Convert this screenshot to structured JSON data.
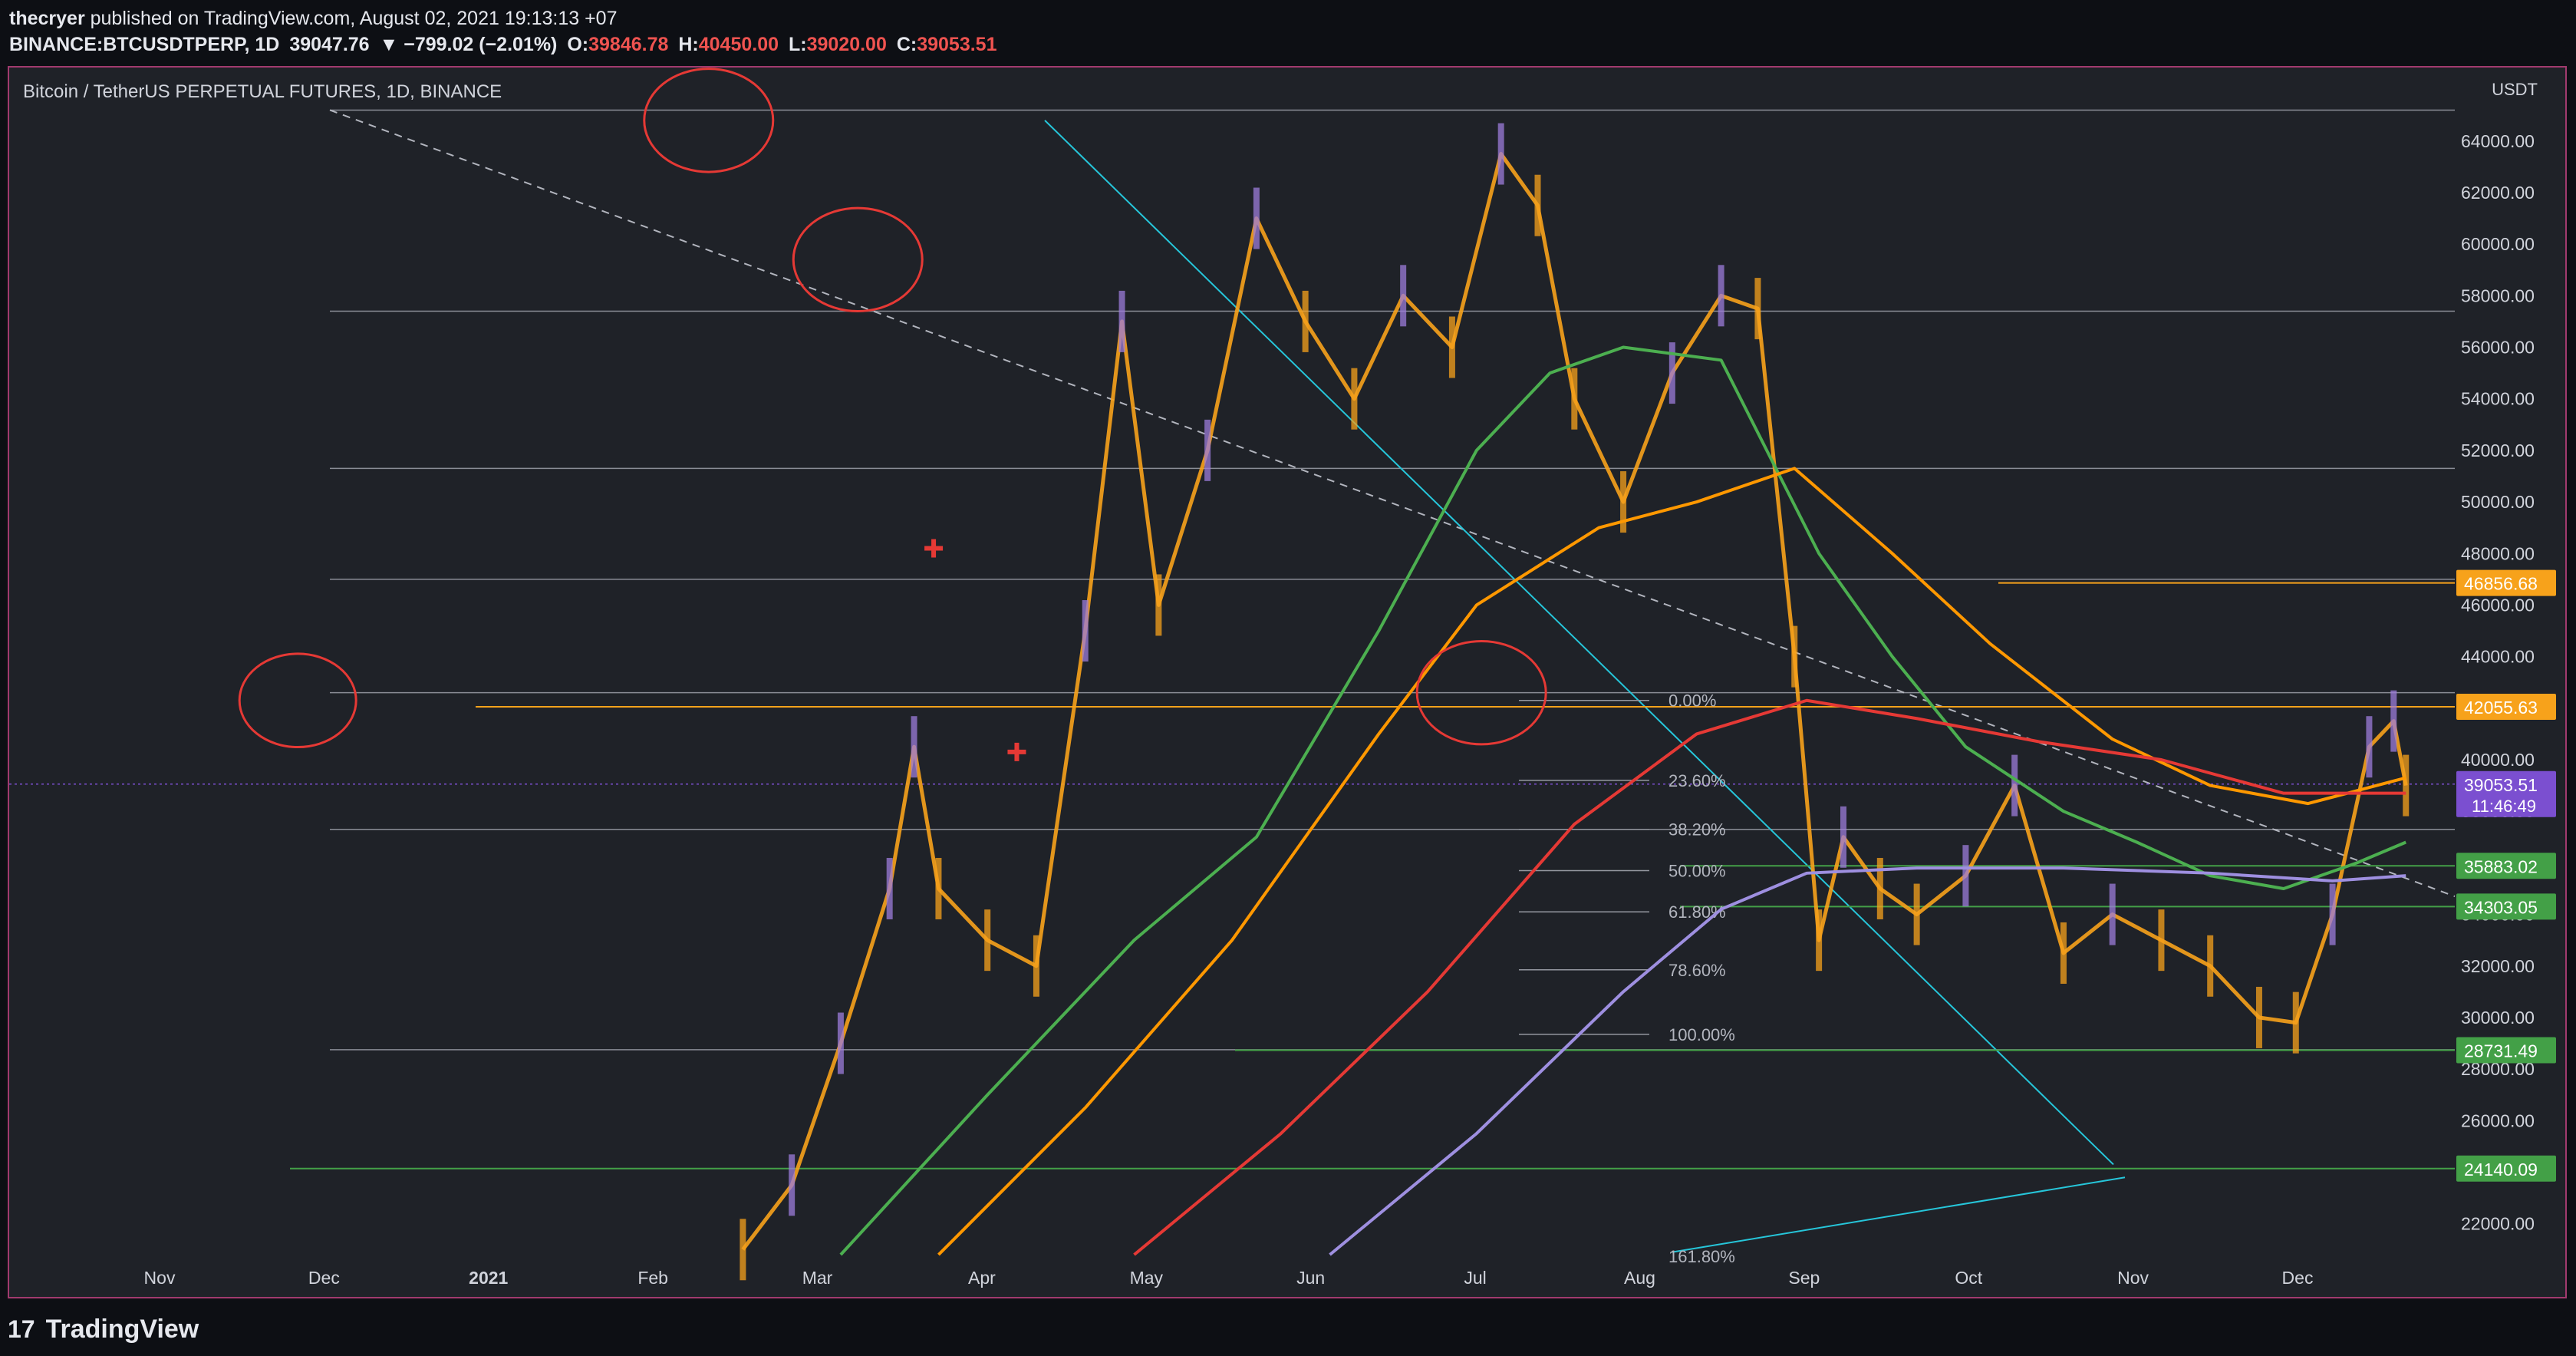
{
  "header": {
    "author": "thecryer",
    "published": "published on TradingView.com, August 02, 2021 19:13:13 +07",
    "symbol": "BINANCE:BTCUSDTPERP, 1D",
    "last": "39047.76",
    "change": "▼ −799.02 (−2.01%)",
    "o_label": "O:",
    "o": "39846.78",
    "h_label": "H:",
    "h": "40450.00",
    "l_label": "L:",
    "l": "39020.00",
    "c_label": "C:",
    "c": "39053.51"
  },
  "chart_title": "Bitcoin / TetherUS PERPETUAL FUTURES, 1D, BINANCE",
  "currency": "USDT",
  "footer": {
    "logo_mark": "17",
    "logo_text": "TradingView"
  },
  "colors": {
    "background": "#1f2228",
    "candle_up": "#9c7cd9",
    "candle_down": "#f7a21b",
    "ma_green": "#4caf50",
    "ma_orange": "#ff9800",
    "ma_red": "#e53935",
    "ma_purple": "#9e8fe0",
    "trendline": "#26c6da",
    "circle": "#e53935"
  },
  "chart_data": {
    "type": "line",
    "ylim": [
      20800,
      65600
    ],
    "x_axis_labels": [
      "Nov",
      "Dec",
      "2021",
      "Feb",
      "Mar",
      "Apr",
      "May",
      "Jun",
      "Jul",
      "Aug",
      "Sep",
      "Oct",
      "Nov",
      "Dec"
    ],
    "y_ticks": [
      22000,
      24000,
      26000,
      28000,
      30000,
      32000,
      34000,
      36000,
      38000,
      40000,
      42000,
      44000,
      46000,
      48000,
      50000,
      52000,
      54000,
      56000,
      58000,
      60000,
      62000,
      64000
    ],
    "y_tick_labels": [
      "22000.00",
      "24000.00",
      "26000.00",
      "28000.00",
      "30000.00",
      "32000.00",
      "34000.00",
      "36000.00",
      "38000.00",
      "40000.00",
      "42000.00",
      "44000.00",
      "46000.00",
      "48000.00",
      "50000.00",
      "52000.00",
      "54000.00",
      "56000.00",
      "58000.00",
      "60000.00",
      "62000.00",
      "64000.00"
    ],
    "price_labels": [
      {
        "value": 46856.68,
        "text": "46856.68",
        "color": "#f7a21b"
      },
      {
        "value": 42055.63,
        "text": "42055.63",
        "color": "#f7a21b"
      },
      {
        "value": 39053.51,
        "text": "39053.51",
        "sub": "11:46:49",
        "color": "#7b4fd0"
      },
      {
        "value": 35883.02,
        "text": "35883.02",
        "color": "#43a047"
      },
      {
        "value": 34303.05,
        "text": "34303.05",
        "color": "#43a047"
      },
      {
        "value": 28731.49,
        "text": "28731.49",
        "color": "#43a047"
      },
      {
        "value": 24140.09,
        "text": "24140.09",
        "color": "#43a047"
      }
    ],
    "fib_levels": [
      {
        "value": 42300,
        "label": "0.00%"
      },
      {
        "value": 39200,
        "label": "23.60%"
      },
      {
        "value": 37300,
        "label": "38.20%"
      },
      {
        "value": 35700,
        "label": "50.00%"
      },
      {
        "value": 34100,
        "label": "61.80%"
      },
      {
        "value": 31850,
        "label": "78.60%"
      },
      {
        "value": 29350,
        "label": "100.00%"
      }
    ],
    "fib_extra_label": "161.80%",
    "horizontal_levels": [
      65200,
      57400,
      51300,
      47000,
      42600,
      37300,
      28750
    ],
    "series": [
      {
        "key": "ma_green",
        "x": [
          0.34,
          0.4,
          0.46,
          0.51,
          0.56,
          0.6,
          0.63,
          0.66,
          0.7,
          0.74,
          0.77,
          0.8,
          0.84,
          0.87,
          0.9,
          0.93,
          0.96,
          0.98
        ],
        "values": [
          20800,
          27000,
          33000,
          37000,
          45000,
          52000,
          55000,
          56000,
          55500,
          48000,
          44000,
          40500,
          38000,
          36800,
          35500,
          35000,
          36000,
          36800
        ]
      },
      {
        "key": "ma_orange",
        "x": [
          0.38,
          0.44,
          0.5,
          0.56,
          0.6,
          0.65,
          0.69,
          0.73,
          0.77,
          0.81,
          0.86,
          0.9,
          0.94,
          0.98
        ],
        "values": [
          20800,
          26500,
          33000,
          41000,
          46000,
          49000,
          50000,
          51300,
          48000,
          44500,
          40800,
          39000,
          38300,
          39300
        ]
      },
      {
        "key": "ma_red",
        "x": [
          0.46,
          0.52,
          0.58,
          0.64,
          0.69,
          0.735,
          0.78,
          0.83,
          0.88,
          0.93,
          0.98
        ],
        "values": [
          20800,
          25500,
          31000,
          37500,
          41000,
          42300,
          41600,
          40700,
          40000,
          38700,
          38700
        ]
      },
      {
        "key": "ma_purple",
        "x": [
          0.54,
          0.6,
          0.66,
          0.7,
          0.735,
          0.78,
          0.84,
          0.9,
          0.95,
          0.98
        ],
        "values": [
          20800,
          25500,
          31000,
          34200,
          35600,
          35800,
          35800,
          35600,
          35300,
          35500
        ]
      }
    ],
    "price_path": {
      "x": [
        0.3,
        0.32,
        0.34,
        0.36,
        0.37,
        0.38,
        0.4,
        0.42,
        0.44,
        0.455,
        0.47,
        0.49,
        0.51,
        0.53,
        0.55,
        0.57,
        0.59,
        0.61,
        0.625,
        0.64,
        0.66,
        0.68,
        0.7,
        0.715,
        0.73,
        0.74,
        0.75,
        0.765,
        0.78,
        0.8,
        0.82,
        0.84,
        0.86,
        0.88,
        0.9,
        0.92,
        0.935,
        0.95,
        0.965,
        0.975,
        0.98
      ],
      "values": [
        21000,
        23500,
        29000,
        35000,
        40500,
        35000,
        33000,
        32000,
        45000,
        57000,
        46000,
        52000,
        61000,
        57000,
        54000,
        58000,
        56000,
        63500,
        61500,
        54000,
        50000,
        55000,
        58000,
        57500,
        44000,
        33000,
        37000,
        35000,
        34000,
        35500,
        39000,
        32500,
        34000,
        33000,
        32000,
        30000,
        29800,
        34000,
        40500,
        41500,
        39000
      ]
    },
    "circles": [
      {
        "x": 0.118,
        "value": 42300,
        "r": 38
      },
      {
        "x": 0.286,
        "value": 64800,
        "r": 42
      },
      {
        "x": 0.347,
        "value": 59400,
        "r": 42
      },
      {
        "x": 0.602,
        "value": 42600,
        "r": 42
      }
    ],
    "plus_markers": [
      {
        "x": 0.378,
        "value": 48200
      },
      {
        "x": 0.412,
        "value": 40300
      }
    ]
  }
}
